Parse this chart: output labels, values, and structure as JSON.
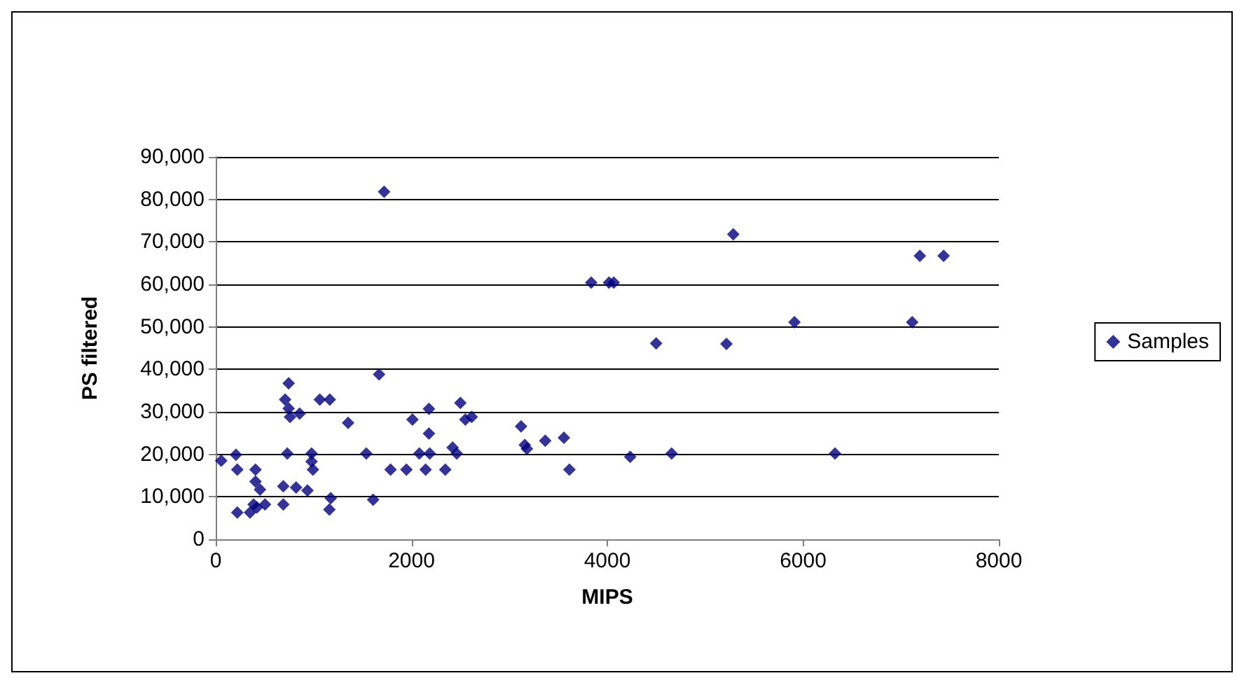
{
  "chart_data": {
    "type": "scatter",
    "xlabel": "MIPS",
    "ylabel": "PS filtered",
    "x": [
      56,
      206,
      220,
      220,
      406,
      406,
      452,
      350,
      387,
      503,
      420,
      690,
      690,
      821,
      937,
      731,
      709,
      745,
      745,
      759,
      857,
      979,
      979,
      993,
      1063,
      1165,
      1175,
      1161,
      1352,
      1538,
      1608,
      1669,
      1720,
      1786,
      1948,
      2010,
      2080,
      2144,
      2178,
      2178,
      2186,
      2345,
      2420,
      2462,
      2499,
      2550,
      2615,
      3119,
      3157,
      3179,
      3366,
      3557,
      3613,
      3836,
      4018,
      4066,
      4234,
      4499,
      4657,
      5287,
      5217,
      5912,
      7115,
      7193,
      7436,
      6326
    ],
    "series": [
      {
        "name": "Samples",
        "color": "#000080",
        "values": [
          18500,
          19900,
          16400,
          6300,
          16400,
          13600,
          11700,
          6300,
          8200,
          8200,
          7500,
          8200,
          12500,
          12200,
          11500,
          20200,
          32900,
          36700,
          30800,
          28800,
          29600,
          20200,
          18300,
          16400,
          32900,
          32900,
          9700,
          7000,
          27400,
          20200,
          9300,
          38800,
          81800,
          16400,
          16400,
          28200,
          20200,
          16400,
          30700,
          24900,
          20200,
          16400,
          21600,
          20200,
          32100,
          28200,
          28800,
          26600,
          22200,
          21300,
          23200,
          23900,
          16400,
          60400,
          60400,
          60400,
          19400,
          46100,
          20200,
          71800,
          46000,
          51100,
          51100,
          66700,
          66700,
          20200
        ]
      }
    ],
    "xlim": [
      0,
      8000
    ],
    "xticks": [
      0,
      2000,
      4000,
      6000,
      8000
    ],
    "ylim": [
      0,
      90000
    ],
    "yticks": [
      0,
      {
        "value": 10000,
        "label": "10,000"
      },
      {
        "value": 20000,
        "label": "20,000"
      },
      {
        "value": 30000,
        "label": "30,000"
      },
      {
        "value": 40000,
        "label": "40,000"
      },
      {
        "value": 50000,
        "label": "50,000"
      },
      {
        "value": 60000,
        "label": "60,000"
      },
      {
        "value": 70000,
        "label": "70,000"
      },
      {
        "value": 80000,
        "label": "80,000"
      },
      {
        "value": 90000,
        "label": "90,000"
      }
    ],
    "grid": "y",
    "legend": "right",
    "marker": "diamond"
  }
}
